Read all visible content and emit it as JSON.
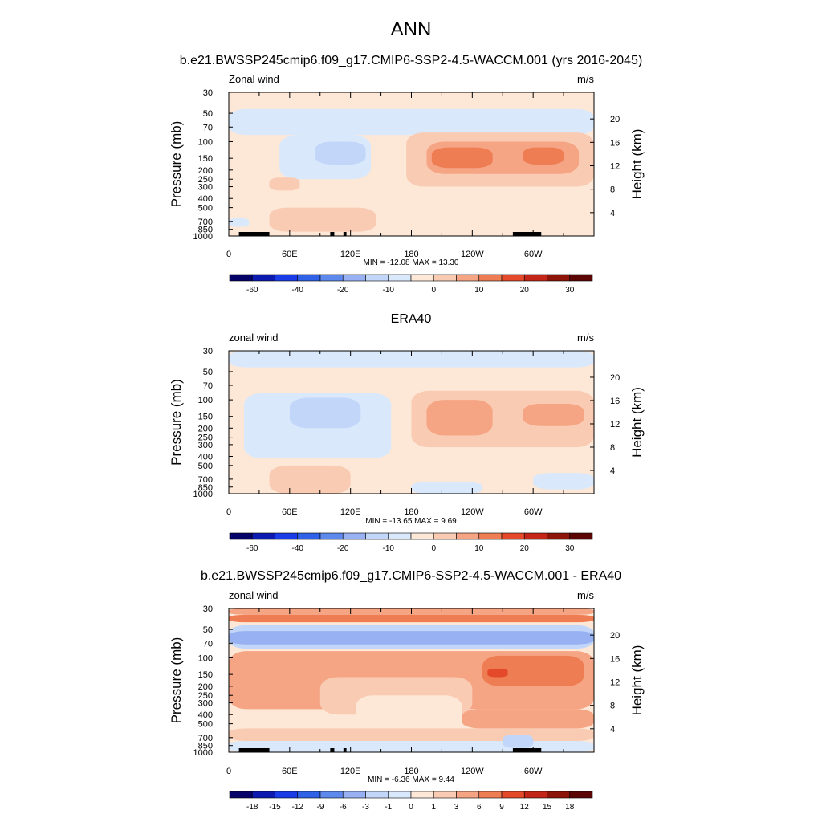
{
  "figure": {
    "title": "ANN",
    "subtitle": "b.e21.BWSSP245cmip6.f09_g17.CMIP6-SSP2-4.5-WACCM.001 (yrs 2016-2045)"
  },
  "colors": {
    "abs_scale": [
      "#050268",
      "#0d1ab0",
      "#1a3ce6",
      "#2f62e6",
      "#5d88ec",
      "#97b1f3",
      "#c2d6f9",
      "#d9e8fb",
      "#fde8d8",
      "#f9cbb2",
      "#f5a484",
      "#ef7d54",
      "#e4492a",
      "#c32516",
      "#8c1409",
      "#5b0505"
    ],
    "diff_scale": [
      "#050268",
      "#0d1ab0",
      "#1a3ce6",
      "#2f62e6",
      "#5d88ec",
      "#97b1f3",
      "#c2d6f9",
      "#d9e8fb",
      "#fde8d8",
      "#f9cbb2",
      "#f5a484",
      "#ef7d54",
      "#e4492a",
      "#c32516",
      "#8c1409",
      "#5b0505"
    ]
  },
  "chart_data": [
    {
      "type": "contour",
      "title": "",
      "left_label": "Zonal wind",
      "right_label": "m/s",
      "ylabel": "Pressure (mb)",
      "ylabel_right": "Height (km)",
      "x_ticks": [
        "0",
        "60E",
        "120E",
        "180",
        "120W",
        "60W"
      ],
      "x_tick_values": [
        0,
        60,
        120,
        180,
        240,
        300
      ],
      "xlim": [
        0,
        360
      ],
      "p_ticks": [
        "30",
        "50",
        "70",
        "100",
        "150",
        "200",
        "250",
        "300",
        "400",
        "500",
        "700",
        "850",
        "1000"
      ],
      "p_tick_values": [
        30,
        50,
        70,
        100,
        150,
        200,
        250,
        300,
        400,
        500,
        700,
        850,
        1000
      ],
      "height_ticks": [
        "4",
        "8",
        "12",
        "16",
        "20"
      ],
      "height_tick_values": [
        4,
        8,
        12,
        16,
        20
      ],
      "stats": "MIN = -12.08  MAX =  13.30",
      "levels": [
        "-60",
        "-40",
        "-20",
        "-10",
        "0",
        "10",
        "20",
        "30"
      ],
      "level_positions": [
        1,
        3,
        5,
        7,
        9,
        11,
        13,
        15
      ],
      "regions": [
        {
          "level": 8,
          "lon": [
            0,
            360
          ],
          "p": [
            30,
            45
          ]
        },
        {
          "level": 7,
          "lon": [
            0,
            360
          ],
          "p": [
            45,
            85
          ]
        },
        {
          "level": 7,
          "lon": [
            50,
            140
          ],
          "p": [
            85,
            250
          ]
        },
        {
          "level": 6,
          "lon": [
            85,
            135
          ],
          "p": [
            100,
            175
          ]
        },
        {
          "level": 9,
          "lon": [
            175,
            360
          ],
          "p": [
            80,
            300
          ]
        },
        {
          "level": 10,
          "lon": [
            195,
            345
          ],
          "p": [
            100,
            220
          ]
        },
        {
          "level": 11,
          "lon": [
            200,
            260
          ],
          "p": [
            115,
            190
          ]
        },
        {
          "level": 11,
          "lon": [
            290,
            330
          ],
          "p": [
            115,
            175
          ]
        },
        {
          "level": 9,
          "lon": [
            40,
            145
          ],
          "p": [
            500,
            900
          ]
        },
        {
          "level": 9,
          "lon": [
            40,
            70
          ],
          "p": [
            240,
            330
          ]
        },
        {
          "level": 7,
          "lon": [
            0,
            20
          ],
          "p": [
            650,
            800
          ]
        }
      ],
      "topography": [
        [
          10,
          40
        ],
        [
          100,
          104
        ],
        [
          113,
          116
        ],
        [
          280,
          308
        ]
      ]
    },
    {
      "type": "contour",
      "title": "ERA40",
      "left_label": "zonal wind",
      "right_label": "m/s",
      "ylabel": "Pressure (mb)",
      "ylabel_right": "Height (km)",
      "x_ticks": [
        "0",
        "60E",
        "120E",
        "180",
        "120W",
        "60W"
      ],
      "x_tick_values": [
        0,
        60,
        120,
        180,
        240,
        300
      ],
      "xlim": [
        0,
        360
      ],
      "p_ticks": [
        "30",
        "50",
        "70",
        "100",
        "150",
        "200",
        "250",
        "300",
        "400",
        "500",
        "700",
        "850",
        "1000"
      ],
      "p_tick_values": [
        30,
        50,
        70,
        100,
        150,
        200,
        250,
        300,
        400,
        500,
        700,
        850,
        1000
      ],
      "height_ticks": [
        "4",
        "8",
        "12",
        "16",
        "20"
      ],
      "height_tick_values": [
        4,
        8,
        12,
        16,
        20
      ],
      "stats": "MIN = -13.65  MAX =   9.69",
      "levels": [
        "-60",
        "-40",
        "-20",
        "-10",
        "0",
        "10",
        "20",
        "30"
      ],
      "level_positions": [
        1,
        3,
        5,
        7,
        9,
        11,
        13,
        15
      ],
      "regions": [
        {
          "level": 7,
          "lon": [
            0,
            360
          ],
          "p": [
            30,
            45
          ]
        },
        {
          "level": 7,
          "lon": [
            15,
            160
          ],
          "p": [
            85,
            420
          ]
        },
        {
          "level": 6,
          "lon": [
            60,
            130
          ],
          "p": [
            95,
            200
          ]
        },
        {
          "level": 9,
          "lon": [
            180,
            360
          ],
          "p": [
            80,
            320
          ]
        },
        {
          "level": 10,
          "lon": [
            195,
            260
          ],
          "p": [
            100,
            240
          ]
        },
        {
          "level": 10,
          "lon": [
            290,
            350
          ],
          "p": [
            110,
            190
          ]
        },
        {
          "level": 9,
          "lon": [
            40,
            120
          ],
          "p": [
            500,
            1000
          ]
        },
        {
          "level": 7,
          "lon": [
            180,
            250
          ],
          "p": [
            750,
            1000
          ]
        },
        {
          "level": 7,
          "lon": [
            300,
            360
          ],
          "p": [
            600,
            900
          ]
        }
      ],
      "topography": []
    },
    {
      "type": "contour",
      "title": "b.e21.BWSSP245cmip6.f09_g17.CMIP6-SSP2-4.5-WACCM.001 - ERA40",
      "left_label": "zonal wind",
      "right_label": "m/s",
      "ylabel": "Pressure (mb)",
      "ylabel_right": "Height (km)",
      "x_ticks": [
        "0",
        "60E",
        "120E",
        "180",
        "120W",
        "60W"
      ],
      "x_tick_values": [
        0,
        60,
        120,
        180,
        240,
        300
      ],
      "xlim": [
        0,
        360
      ],
      "p_ticks": [
        "30",
        "50",
        "70",
        "100",
        "150",
        "200",
        "250",
        "300",
        "400",
        "500",
        "700",
        "850",
        "1000"
      ],
      "p_tick_values": [
        30,
        50,
        70,
        100,
        150,
        200,
        250,
        300,
        400,
        500,
        700,
        850,
        1000
      ],
      "height_ticks": [
        "4",
        "8",
        "12",
        "16",
        "20"
      ],
      "height_tick_values": [
        4,
        8,
        12,
        16,
        20
      ],
      "stats": "MIN =  -6.36  MAX =   9.44",
      "levels": [
        "-18",
        "-15",
        "-12",
        "-9",
        "-6",
        "-3",
        "-1",
        "0",
        "1",
        "3",
        "6",
        "9",
        "12",
        "15",
        "18"
      ],
      "level_positions": [
        1,
        2,
        3,
        4,
        5,
        6,
        7,
        8,
        9,
        10,
        11,
        12,
        13,
        14,
        15
      ],
      "regions": [
        {
          "level": 10,
          "lon": [
            0,
            360
          ],
          "p": [
            30,
            35
          ]
        },
        {
          "level": 11,
          "lon": [
            0,
            360
          ],
          "p": [
            35,
            42
          ]
        },
        {
          "level": 6,
          "lon": [
            0,
            360
          ],
          "p": [
            45,
            80
          ]
        },
        {
          "level": 5,
          "lon": [
            0,
            360
          ],
          "p": [
            52,
            72
          ]
        },
        {
          "level": 10,
          "lon": [
            0,
            360
          ],
          "p": [
            85,
            350
          ]
        },
        {
          "level": 9,
          "lon": [
            90,
            240
          ],
          "p": [
            160,
            400
          ]
        },
        {
          "level": 8,
          "lon": [
            125,
            230
          ],
          "p": [
            250,
            600
          ]
        },
        {
          "level": 10,
          "lon": [
            230,
            360
          ],
          "p": [
            350,
            560
          ]
        },
        {
          "level": 11,
          "lon": [
            250,
            350
          ],
          "p": [
            95,
            200
          ]
        },
        {
          "level": 12,
          "lon": [
            255,
            275
          ],
          "p": [
            130,
            160
          ]
        },
        {
          "level": 9,
          "lon": [
            0,
            360
          ],
          "p": [
            560,
            760
          ]
        },
        {
          "level": 7,
          "lon": [
            0,
            360
          ],
          "p": [
            760,
            1000
          ]
        },
        {
          "level": 6,
          "lon": [
            270,
            300
          ],
          "p": [
            650,
            900
          ]
        }
      ],
      "topography": [
        [
          10,
          40
        ],
        [
          100,
          104
        ],
        [
          113,
          116
        ],
        [
          280,
          308
        ]
      ]
    }
  ]
}
